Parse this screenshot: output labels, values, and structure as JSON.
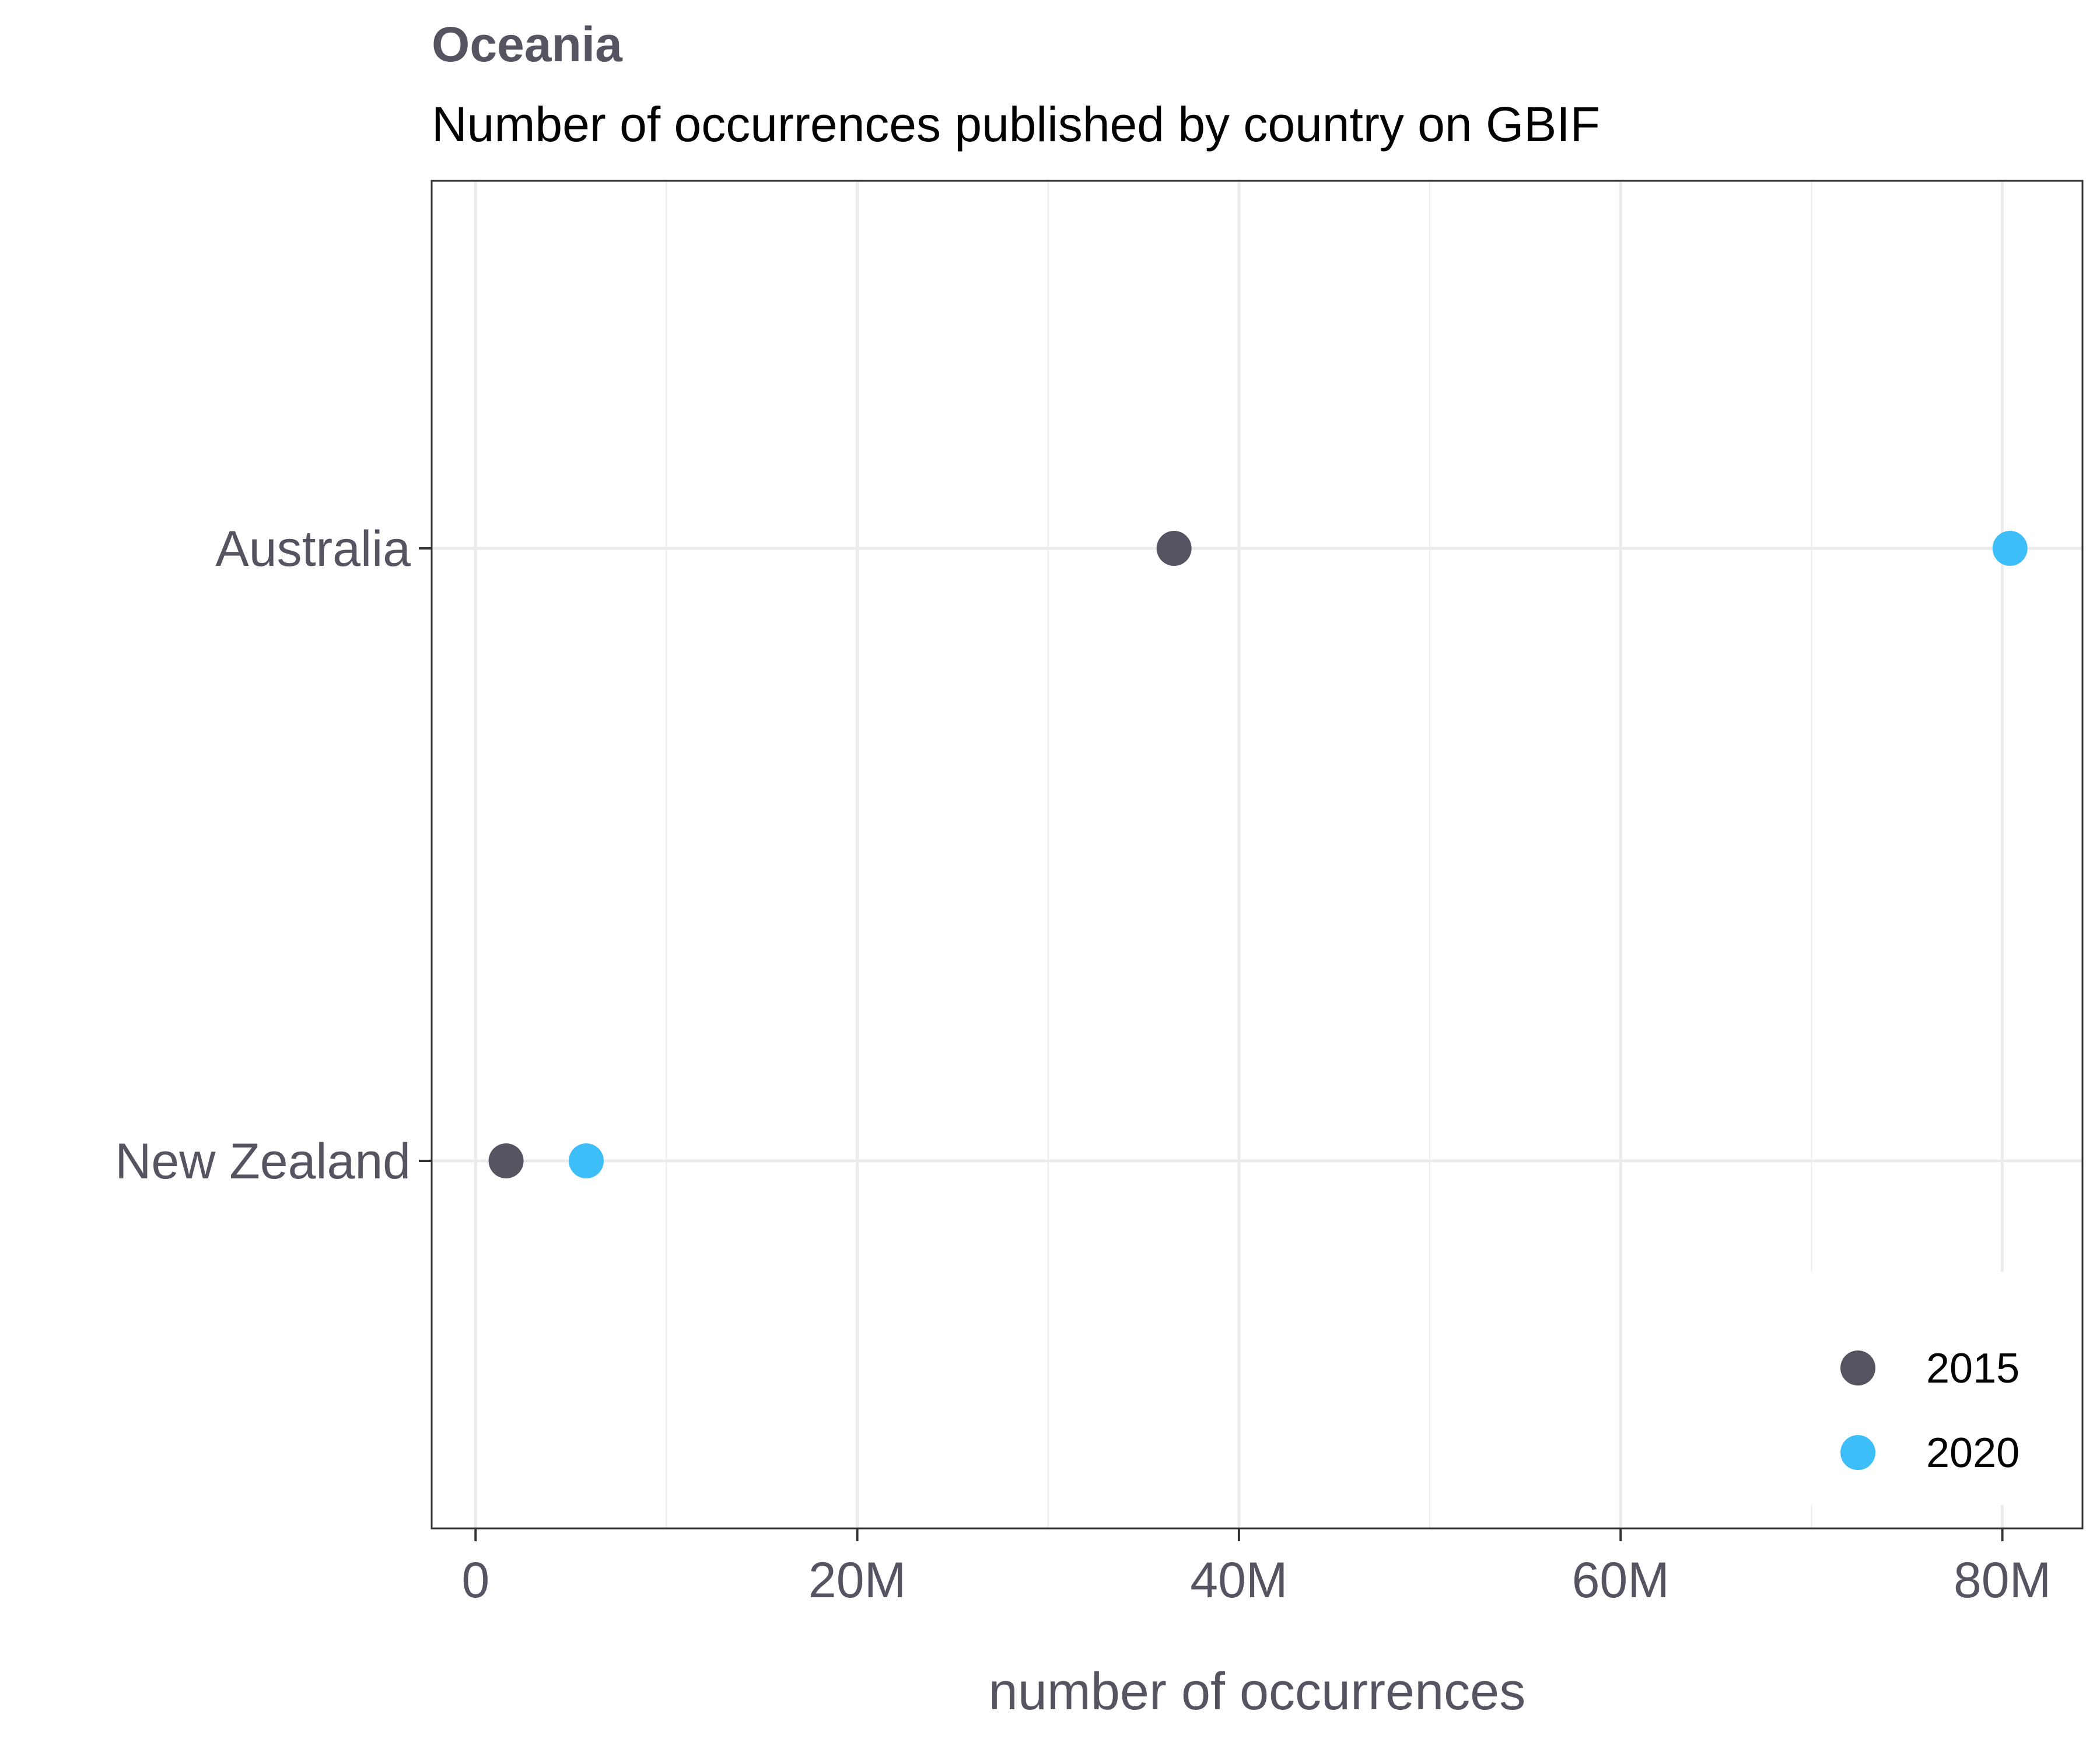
{
  "chart_data": {
    "type": "scatter",
    "title": "Oceania",
    "subtitle": "Number of occurrences published by country on GBIF",
    "xlabel": "number of occurrences",
    "ylabel": "",
    "xlim": [
      -2300000,
      84200000
    ],
    "x_ticks": [
      0,
      20000000,
      40000000,
      60000000,
      80000000
    ],
    "x_tick_labels": [
      "0",
      "20M",
      "40M",
      "60M",
      "80M"
    ],
    "categories": [
      "Australia",
      "New Zealand"
    ],
    "grid": true,
    "legend_position": "bottom-right",
    "series": [
      {
        "name": "2015",
        "color": "#555562",
        "values": [
          36600000,
          1600000
        ]
      },
      {
        "name": "2020",
        "color": "#3DBEF8",
        "values": [
          80400000,
          5800000
        ]
      }
    ],
    "colors": {
      "text": "#555562",
      "title_text": "#555562",
      "subtitle_text": "#000000",
      "grid": "#EBEBEB",
      "panel_border": "#333333"
    }
  }
}
